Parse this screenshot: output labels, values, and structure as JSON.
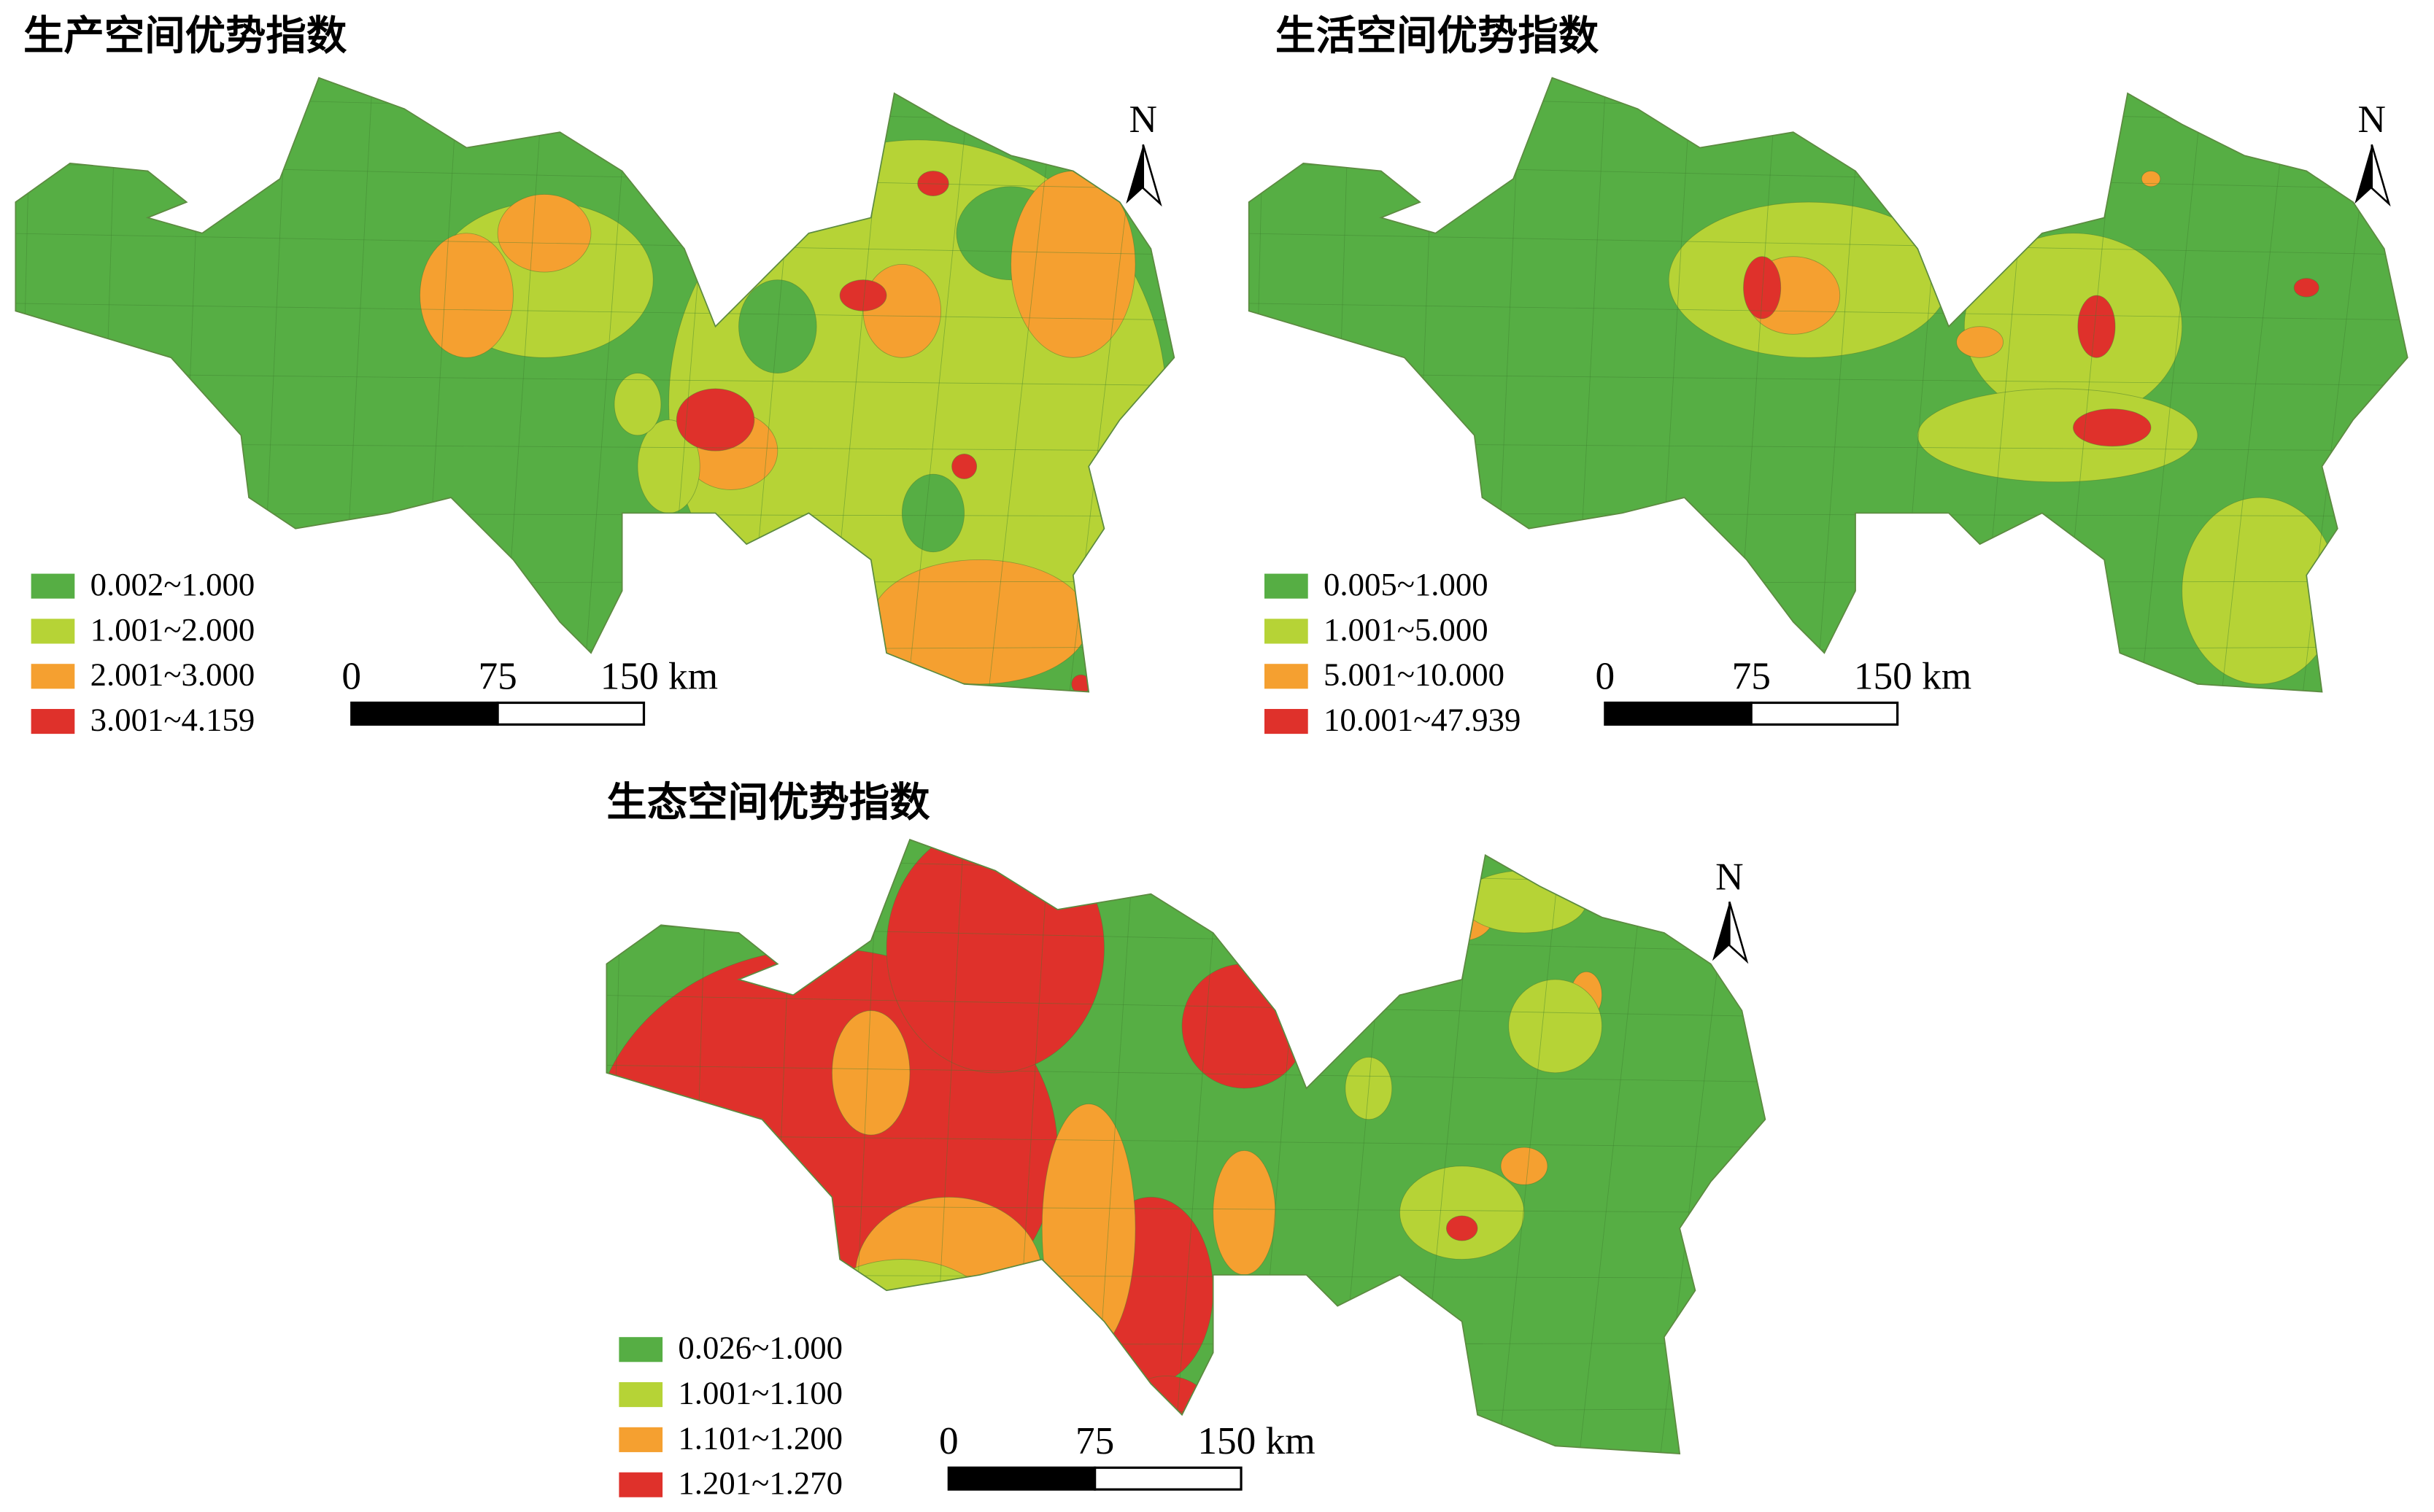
{
  "panels": [
    {
      "title": "生产空间优势指数",
      "legend": [
        {
          "label": "0.002~1.000",
          "color": "#56ae44"
        },
        {
          "label": "1.001~2.000",
          "color": "#b6d336"
        },
        {
          "label": "2.001~3.000",
          "color": "#f5a030"
        },
        {
          "label": "3.001~4.159",
          "color": "#df312b"
        }
      ],
      "scale": [
        "0",
        "75",
        "150 km"
      ],
      "north": "N"
    },
    {
      "title": "生活空间优势指数",
      "legend": [
        {
          "label": "0.005~1.000",
          "color": "#56ae44"
        },
        {
          "label": "1.001~5.000",
          "color": "#b6d336"
        },
        {
          "label": "5.001~10.000",
          "color": "#f5a030"
        },
        {
          "label": "10.001~47.939",
          "color": "#df312b"
        }
      ],
      "scale": [
        "0",
        "75",
        "150 km"
      ],
      "north": "N"
    },
    {
      "title": "生态空间优势指数",
      "legend": [
        {
          "label": "0.026~1.000",
          "color": "#56ae44"
        },
        {
          "label": "1.001~1.100",
          "color": "#b6d336"
        },
        {
          "label": "1.101~1.200",
          "color": "#f5a030"
        },
        {
          "label": "1.201~1.270",
          "color": "#df312b"
        }
      ],
      "scale": [
        "0",
        "75",
        "150 km"
      ],
      "north": "N"
    }
  ]
}
